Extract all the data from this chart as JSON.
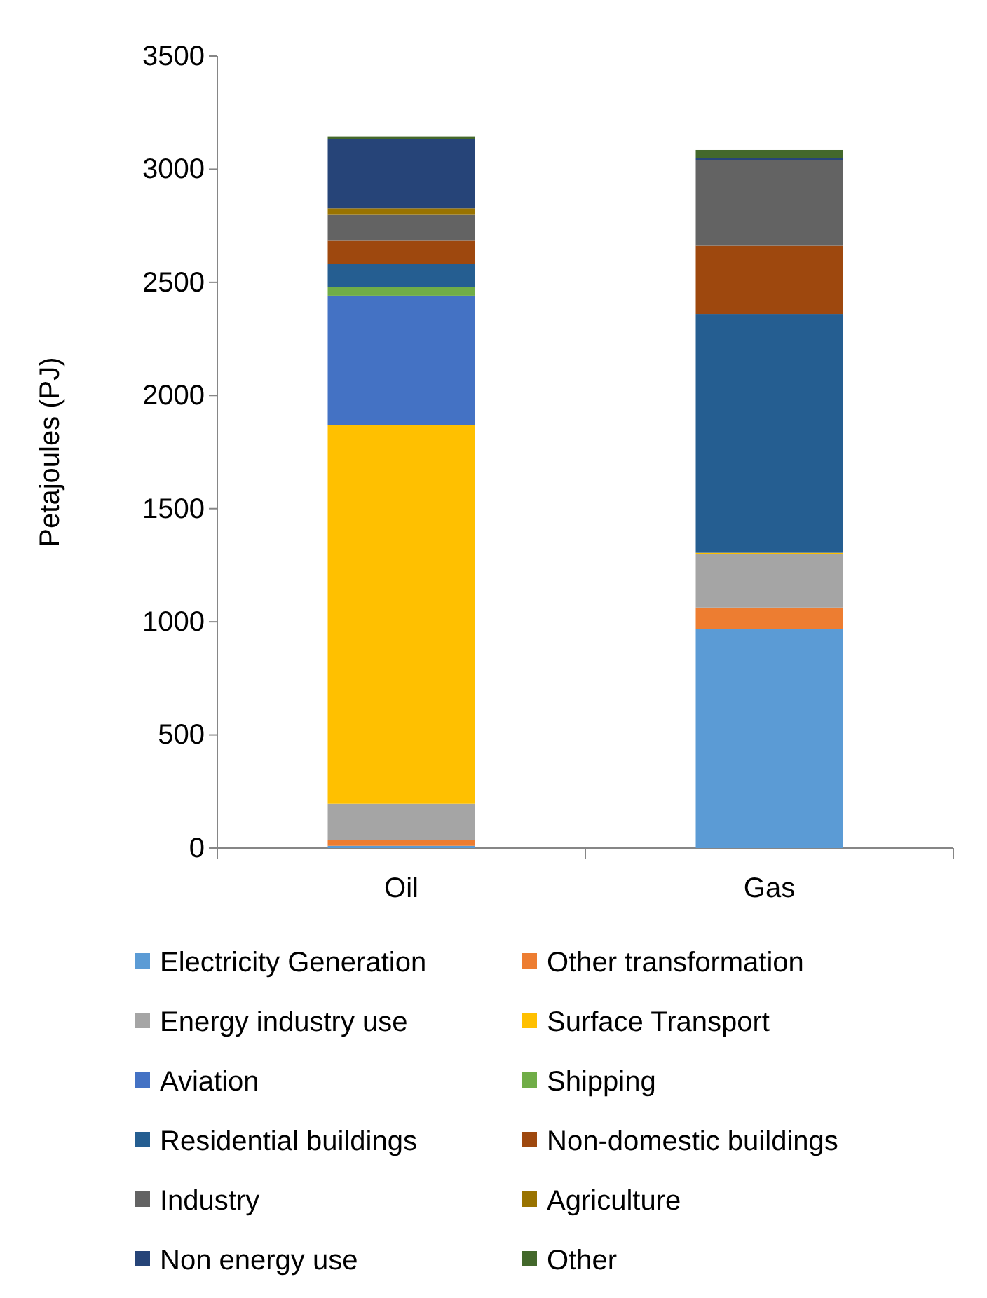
{
  "chart_data": {
    "type": "bar",
    "stacked": true,
    "ylabel": "Petajoules (PJ)",
    "categories": [
      "Oil",
      "Gas"
    ],
    "ylim": [
      0,
      3500
    ],
    "yticks": [
      0,
      500,
      1000,
      1500,
      2000,
      2500,
      3000,
      3500
    ],
    "grid": false,
    "legend": "bottom",
    "series": [
      {
        "name": "Electricity Generation",
        "color": "#5b9bd5",
        "values": [
          10,
          968
        ]
      },
      {
        "name": "Other transformation",
        "color": "#ed7d31",
        "values": [
          25,
          95
        ]
      },
      {
        "name": "Energy industry use",
        "color": "#a5a5a5",
        "values": [
          161,
          236
        ]
      },
      {
        "name": "Surface Transport",
        "color": "#ffc000",
        "values": [
          1673,
          6
        ]
      },
      {
        "name": "Aviation",
        "color": "#4472c4",
        "values": [
          572,
          0
        ]
      },
      {
        "name": "Shipping",
        "color": "#70ad47",
        "values": [
          37,
          0
        ]
      },
      {
        "name": "Residential buildings",
        "color": "#255e91",
        "values": [
          105,
          1055
        ]
      },
      {
        "name": "Non-domestic buildings",
        "color": "#9e480e",
        "values": [
          101,
          302
        ]
      },
      {
        "name": "Industry",
        "color": "#636363",
        "values": [
          114,
          378
        ]
      },
      {
        "name": "Agriculture",
        "color": "#997300",
        "values": [
          29,
          0
        ]
      },
      {
        "name": "Non energy use",
        "color": "#264478",
        "values": [
          306,
          10
        ]
      },
      {
        "name": "Other",
        "color": "#43682b",
        "values": [
          12,
          35
        ]
      }
    ]
  }
}
